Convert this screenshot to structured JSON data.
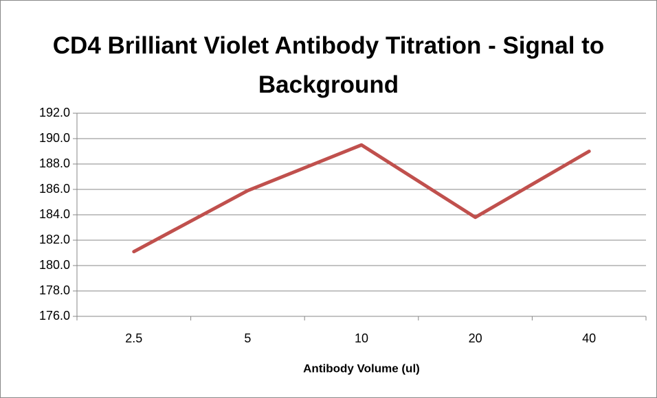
{
  "chart_data": {
    "type": "line",
    "title": "CD4 Brilliant Violet Antibody Titration - Signal to Background",
    "x_label": "Antibody Volume (ul)",
    "categories": [
      "2.5",
      "5",
      "10",
      "20",
      "40"
    ],
    "series": [
      {
        "name": "Signal to Background",
        "color": "#c0504d",
        "values": [
          181.1,
          185.9,
          189.5,
          183.8,
          189.0
        ]
      }
    ],
    "ylim": [
      176,
      192
    ],
    "yticks": [
      {
        "value": 176,
        "label": "176.0"
      },
      {
        "value": 178,
        "label": "178.0"
      },
      {
        "value": 180,
        "label": "180.0"
      },
      {
        "value": 182,
        "label": "182.0"
      },
      {
        "value": 184,
        "label": "184.0"
      },
      {
        "value": 186,
        "label": "186.0"
      },
      {
        "value": 188,
        "label": "188.0"
      },
      {
        "value": 190,
        "label": "190.0"
      },
      {
        "value": 192,
        "label": "192.0"
      }
    ],
    "grid": true
  }
}
